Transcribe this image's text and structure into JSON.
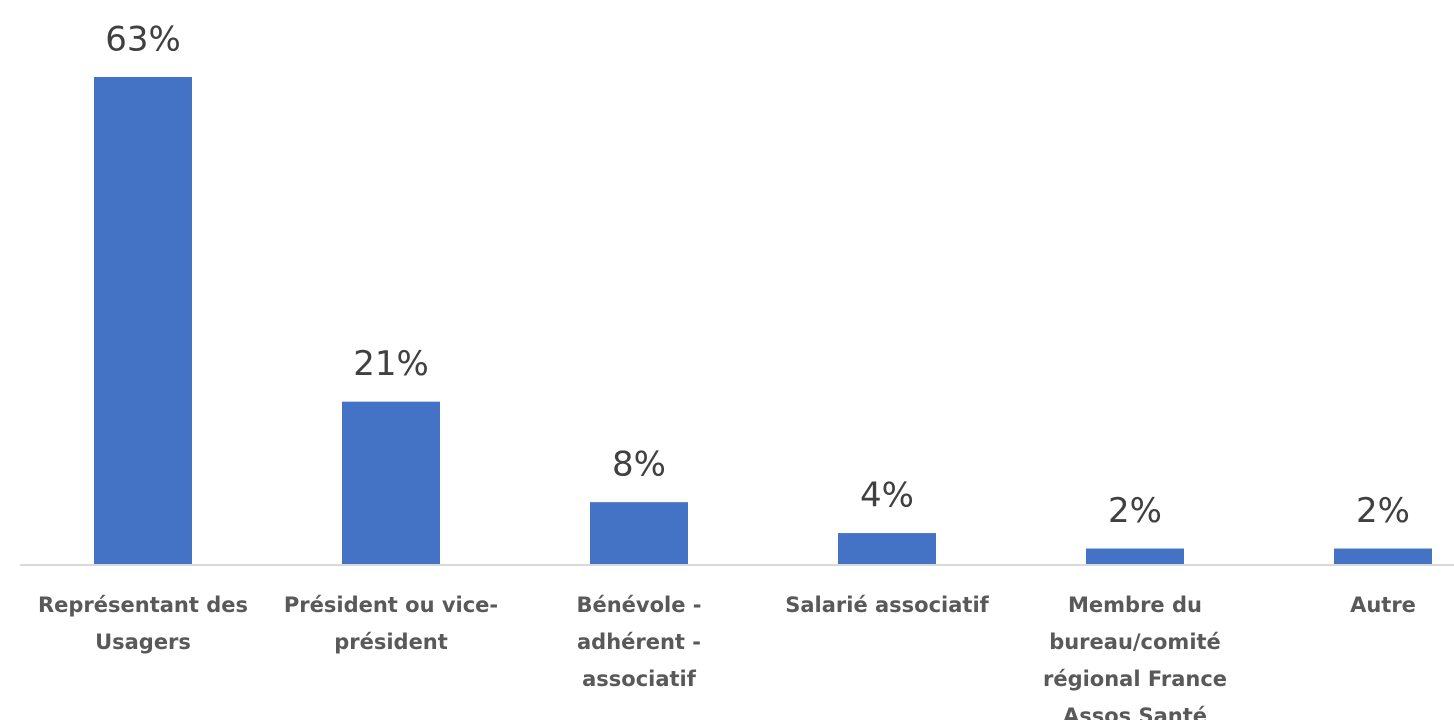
{
  "chart_data": {
    "type": "bar",
    "categories": [
      [
        "Représentant des",
        "Usagers"
      ],
      [
        "Président ou vice-",
        "président"
      ],
      [
        "Bénévole -",
        "adhérent -",
        "associatif"
      ],
      [
        "Salarié associatif"
      ],
      [
        "Membre du",
        "bureau/comité",
        "régional France",
        "Assos Santé"
      ],
      [
        "Autre"
      ]
    ],
    "values": [
      63,
      21,
      8,
      4,
      2,
      2
    ],
    "value_labels": [
      "63%",
      "21%",
      "8%",
      "4%",
      "2%",
      "2%"
    ],
    "color": "#4472c4"
  }
}
